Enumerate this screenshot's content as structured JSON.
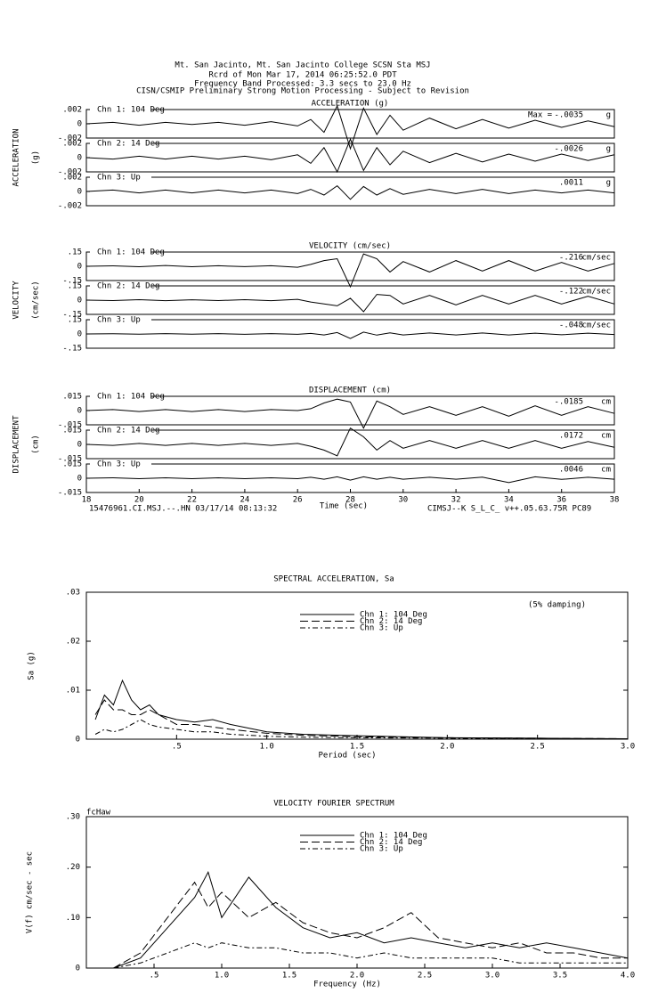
{
  "header": [
    "Mt. San Jacinto, Mt. San Jacinto College    SCSN Sta MSJ",
    "Rcrd of Mon Mar 17, 2014 06:25:52.0 PDT",
    "Frequency Band Processed: 3.3 secs to 23.0 Hz",
    "CISN/CSMIP Preliminary Strong Motion Processing - Subject to Revision"
  ],
  "chart_data": [
    {
      "type": "seismogram",
      "title": "ACCELERATION (g)",
      "ylabel": "ACCELERATION",
      "yunit": "(g)",
      "peak_prefix": "Max =",
      "xlim": [
        18,
        38
      ],
      "x": [
        18,
        19,
        20,
        21,
        22,
        23,
        24,
        25,
        26,
        26.5,
        27,
        27.5,
        28,
        28.5,
        29,
        29.5,
        30,
        31,
        32,
        33,
        34,
        35,
        36,
        37,
        38
      ],
      "series": [
        {
          "name": "Chn 1: 104 Deg",
          "color": "#000",
          "peak": "-.0035",
          "unit": "g",
          "ylim": [
            -0.002,
            0.002
          ],
          "yticks": [
            {
              "value": 0.002,
              "label": ".002"
            },
            0,
            {
              "value": -0.002,
              "label": "-.002"
            }
          ],
          "values": [
            0,
            0.0002,
            -0.0002,
            0.0002,
            -0.0001,
            0.0002,
            -0.0002,
            0.0003,
            -0.0003,
            0.0006,
            -0.0012,
            0.0025,
            -0.0035,
            0.0022,
            -0.0015,
            0.0012,
            -0.0009,
            0.0008,
            -0.0007,
            0.0006,
            -0.0006,
            0.0005,
            -0.0005,
            0.0004,
            -0.0004
          ]
        },
        {
          "name": "Chn 2: 14 Deg",
          "color": "#000",
          "peak": "-.0026",
          "unit": "g",
          "ylim": [
            -0.002,
            0.002
          ],
          "yticks": [
            {
              "value": 0.002,
              "label": ".002"
            },
            0,
            {
              "value": -0.002,
              "label": "-.002"
            }
          ],
          "values": [
            0,
            -0.0002,
            0.0002,
            -0.0002,
            0.0002,
            -0.0002,
            0.0002,
            -0.0003,
            0.0004,
            -0.0008,
            0.0014,
            -0.002,
            0.0026,
            -0.0018,
            0.0014,
            -0.001,
            0.0009,
            -0.0007,
            0.0006,
            -0.0006,
            0.0005,
            -0.0005,
            0.0005,
            -0.0004,
            0.0004
          ]
        },
        {
          "name": "Chn 3: Up",
          "color": "#000",
          "peak": ".0011",
          "unit": "g",
          "ylim": [
            -0.002,
            0.002
          ],
          "yticks": [
            {
              "value": 0.002,
              "label": ".002"
            },
            0,
            {
              "value": -0.002,
              "label": "-.002"
            }
          ],
          "values": [
            0,
            0.0002,
            -0.0002,
            0.0002,
            -0.0002,
            0.0002,
            -0.0002,
            0.0002,
            -0.0003,
            0.0003,
            -0.0005,
            0.0008,
            -0.0011,
            0.0007,
            -0.0005,
            0.0004,
            -0.0004,
            0.0003,
            -0.0003,
            0.0003,
            -0.0003,
            0.0002,
            -0.0002,
            0.0002,
            -0.0002
          ]
        }
      ]
    },
    {
      "type": "seismogram",
      "title": "VELOCITY (cm/sec)",
      "ylabel": "VELOCITY",
      "yunit": "(cm/sec)",
      "xlim": [
        18,
        38
      ],
      "x": [
        18,
        19,
        20,
        21,
        22,
        23,
        24,
        25,
        26,
        26.5,
        27,
        27.5,
        28,
        28.5,
        29,
        29.5,
        30,
        31,
        32,
        33,
        34,
        35,
        36,
        37,
        38
      ],
      "series": [
        {
          "name": "Chn 1: 104 Deg",
          "color": "#000",
          "peak": "-.216",
          "unit": "cm/sec",
          "ylim": [
            -0.15,
            0.15
          ],
          "yticks": [
            {
              "value": 0.15,
              "label": ".15"
            },
            0,
            {
              "value": -0.15,
              "label": "-.15"
            }
          ],
          "values": [
            0,
            0.005,
            -0.005,
            0.008,
            -0.005,
            0.006,
            -0.004,
            0.006,
            -0.01,
            0.02,
            0.06,
            0.08,
            -0.216,
            0.13,
            0.08,
            -0.06,
            0.05,
            -0.06,
            0.06,
            -0.05,
            0.06,
            -0.05,
            0.04,
            -0.05,
            0.03
          ]
        },
        {
          "name": "Chn 2: 14 Deg",
          "color": "#000",
          "peak": "-.122",
          "unit": "cm/sec",
          "ylim": [
            -0.15,
            0.15
          ],
          "yticks": [
            {
              "value": 0.15,
              "label": ".15"
            },
            0,
            {
              "value": -0.15,
              "label": "-.15"
            }
          ],
          "values": [
            0,
            -0.005,
            0.005,
            -0.006,
            0.004,
            -0.005,
            0.005,
            -0.006,
            0.008,
            -0.02,
            -0.04,
            -0.06,
            0.02,
            -0.122,
            0.06,
            0.05,
            -0.04,
            0.05,
            -0.05,
            0.05,
            -0.04,
            0.05,
            -0.04,
            0.04,
            -0.04
          ]
        },
        {
          "name": "Chn 3: Up",
          "color": "#000",
          "peak": "-.048",
          "unit": "cm/sec",
          "ylim": [
            -0.15,
            0.15
          ],
          "yticks": [
            {
              "value": 0.15,
              "label": ".15"
            },
            0,
            {
              "value": -0.15,
              "label": "-.15"
            }
          ],
          "values": [
            0,
            0.003,
            -0.003,
            0.004,
            -0.003,
            0.004,
            -0.004,
            0.004,
            -0.004,
            0.006,
            -0.01,
            0.015,
            -0.048,
            0.02,
            -0.012,
            0.012,
            -0.01,
            0.01,
            -0.01,
            0.01,
            -0.01,
            0.008,
            -0.008,
            0.008,
            -0.006
          ]
        }
      ]
    },
    {
      "type": "seismogram",
      "title": "DISPLACEMENT (cm)",
      "ylabel": "DISPLACEMENT",
      "yunit": "(cm)",
      "xlabel": "Time (sec)",
      "footnotes": [
        "15476961.CI.MSJ.--.HN 03/17/14 08:13:32",
        "CIMSJ--K  S_L_C_  v++.05.63.75R PC89"
      ],
      "xlim": [
        18,
        38
      ],
      "xticks": [
        18,
        20,
        22,
        24,
        26,
        28,
        30,
        32,
        34,
        36,
        38
      ],
      "x": [
        18,
        19,
        20,
        21,
        22,
        23,
        24,
        25,
        26,
        26.5,
        27,
        27.5,
        28,
        28.5,
        29,
        29.5,
        30,
        31,
        32,
        33,
        34,
        35,
        36,
        37,
        38
      ],
      "series": [
        {
          "name": "Chn 1: 104 Deg",
          "color": "#000",
          "peak": "-.0185",
          "unit": "cm",
          "ylim": [
            -0.015,
            0.015
          ],
          "yticks": [
            {
              "value": 0.015,
              "label": ".015"
            },
            0,
            {
              "value": -0.015,
              "label": "-.015"
            }
          ],
          "values": [
            0,
            0.001,
            -0.001,
            0.001,
            -0.001,
            0.001,
            -0.001,
            0.001,
            0,
            0.002,
            0.008,
            0.012,
            0.009,
            -0.0185,
            0.01,
            0.004,
            -0.004,
            0.004,
            -0.005,
            0.004,
            -0.006,
            0.005,
            -0.005,
            0.004,
            -0.003
          ]
        },
        {
          "name": "Chn 2: 14 Deg",
          "color": "#000",
          "peak": ".0172",
          "unit": "cm",
          "ylim": [
            -0.015,
            0.015
          ],
          "yticks": [
            {
              "value": 0.015,
              "label": ".015"
            },
            0,
            {
              "value": -0.015,
              "label": "-.015"
            }
          ],
          "values": [
            0,
            -0.001,
            0.001,
            -0.001,
            0.001,
            -0.001,
            0.001,
            -0.001,
            0.001,
            -0.002,
            -0.006,
            -0.012,
            0.0172,
            0.008,
            -0.006,
            0.004,
            -0.004,
            0.004,
            -0.004,
            0.004,
            -0.004,
            0.004,
            -0.004,
            0.003,
            -0.003
          ]
        },
        {
          "name": "Chn 3: Up",
          "color": "#000",
          "peak": ".0046",
          "unit": "cm",
          "ylim": [
            -0.015,
            0.015
          ],
          "yticks": [
            {
              "value": 0.015,
              "label": ".015"
            },
            0,
            {
              "value": -0.015,
              "label": "-.015"
            }
          ],
          "values": [
            0,
            0.0005,
            -0.0005,
            0.0005,
            -0.0005,
            0.0005,
            -0.0005,
            0.0005,
            -0.0005,
            0.001,
            -0.001,
            0.0015,
            -0.002,
            0.0015,
            -0.001,
            0.001,
            -0.001,
            0.001,
            -0.001,
            0.0012,
            -0.0046,
            0.0015,
            -0.0012,
            0.001,
            -0.001
          ]
        }
      ]
    },
    {
      "type": "line",
      "title": "SPECTRAL ACCELERATION, Sa",
      "xlabel": "Period (sec)",
      "ylabel": "Sa (g)",
      "annotation": "(5% damping)",
      "xlim": [
        0,
        3
      ],
      "ylim": [
        0,
        0.03
      ],
      "xticks": [
        {
          "value": 0.5,
          "label": ".5"
        },
        {
          "value": 1,
          "label": "1.0"
        },
        {
          "value": 1.5,
          "label": "1.5"
        },
        {
          "value": 2,
          "label": "2.0"
        },
        {
          "value": 2.5,
          "label": "2.5"
        },
        {
          "value": 3,
          "label": "3.0"
        }
      ],
      "yticks": [
        0,
        {
          "value": 0.01,
          "label": ".01"
        },
        {
          "value": 0.02,
          "label": ".02"
        },
        {
          "value": 0.03,
          "label": ".03"
        }
      ],
      "x": [
        0.05,
        0.1,
        0.15,
        0.2,
        0.25,
        0.3,
        0.35,
        0.4,
        0.5,
        0.6,
        0.7,
        0.8,
        1.0,
        1.2,
        1.5,
        2.0,
        2.5,
        3.0
      ],
      "series": [
        {
          "name": "Chn 1: 104 Deg",
          "color": "#000",
          "dash": "solid",
          "values": [
            0.004,
            0.009,
            0.007,
            0.012,
            0.008,
            0.006,
            0.007,
            0.005,
            0.004,
            0.0035,
            0.004,
            0.003,
            0.0015,
            0.001,
            0.0007,
            0.0003,
            0.0002,
            0.0001
          ]
        },
        {
          "name": "Chn 2: 14 Deg",
          "color": "#000",
          "dash": "long-dash",
          "values": [
            0.005,
            0.008,
            0.006,
            0.006,
            0.005,
            0.005,
            0.006,
            0.005,
            0.003,
            0.003,
            0.0025,
            0.002,
            0.0012,
            0.0008,
            0.0005,
            0.0003,
            0.0002,
            0.0001
          ]
        },
        {
          "name": "Chn 3: Up",
          "color": "#000",
          "dash": "dash-dot",
          "values": [
            0.001,
            0.002,
            0.0015,
            0.002,
            0.003,
            0.004,
            0.003,
            0.0025,
            0.002,
            0.0015,
            0.0015,
            0.001,
            0.0006,
            0.0004,
            0.0003,
            0.0002,
            0.0001,
            0.0001
          ]
        }
      ]
    },
    {
      "type": "line",
      "title": "VELOCITY FOURIER SPECTRUM",
      "xlabel": "Frequency (Hz)",
      "ylabel": "V(f)   cm/sec - sec",
      "annotation": "fcHaw",
      "xlim": [
        0,
        4
      ],
      "ylim": [
        0,
        0.3
      ],
      "xticks": [
        {
          "value": 0.5,
          "label": ".5"
        },
        {
          "value": 1,
          "label": "1.0"
        },
        {
          "value": 1.5,
          "label": "1.5"
        },
        {
          "value": 2,
          "label": "2.0"
        },
        {
          "value": 2.5,
          "label": "2.5"
        },
        {
          "value": 3,
          "label": "3.0"
        },
        {
          "value": 3.5,
          "label": "3.5"
        },
        {
          "value": 4,
          "label": "4.0"
        }
      ],
      "yticks": [
        0,
        {
          "value": 0.1,
          "label": ".10"
        },
        {
          "value": 0.2,
          "label": ".20"
        },
        {
          "value": 0.3,
          "label": ".30"
        }
      ],
      "x": [
        0.2,
        0.4,
        0.6,
        0.8,
        0.9,
        1.0,
        1.2,
        1.4,
        1.6,
        1.8,
        2.0,
        2.2,
        2.4,
        2.6,
        2.8,
        3.0,
        3.2,
        3.4,
        3.6,
        3.8,
        4.0
      ],
      "series": [
        {
          "name": "Chn 1: 104 Deg",
          "color": "#000",
          "dash": "solid",
          "values": [
            0,
            0.02,
            0.08,
            0.14,
            0.19,
            0.1,
            0.18,
            0.12,
            0.08,
            0.06,
            0.07,
            0.05,
            0.06,
            0.05,
            0.04,
            0.05,
            0.04,
            0.05,
            0.04,
            0.03,
            0.02
          ]
        },
        {
          "name": "Chn 2: 14 Deg",
          "color": "#000",
          "dash": "long-dash",
          "values": [
            0,
            0.03,
            0.1,
            0.17,
            0.12,
            0.15,
            0.1,
            0.13,
            0.09,
            0.07,
            0.06,
            0.08,
            0.11,
            0.06,
            0.05,
            0.04,
            0.05,
            0.03,
            0.03,
            0.02,
            0.02
          ]
        },
        {
          "name": "Chn 3: Up",
          "color": "#000",
          "dash": "dash-dot",
          "values": [
            0,
            0.01,
            0.03,
            0.05,
            0.04,
            0.05,
            0.04,
            0.04,
            0.03,
            0.03,
            0.02,
            0.03,
            0.02,
            0.02,
            0.02,
            0.02,
            0.01,
            0.01,
            0.01,
            0.01,
            0.01
          ]
        }
      ]
    }
  ]
}
